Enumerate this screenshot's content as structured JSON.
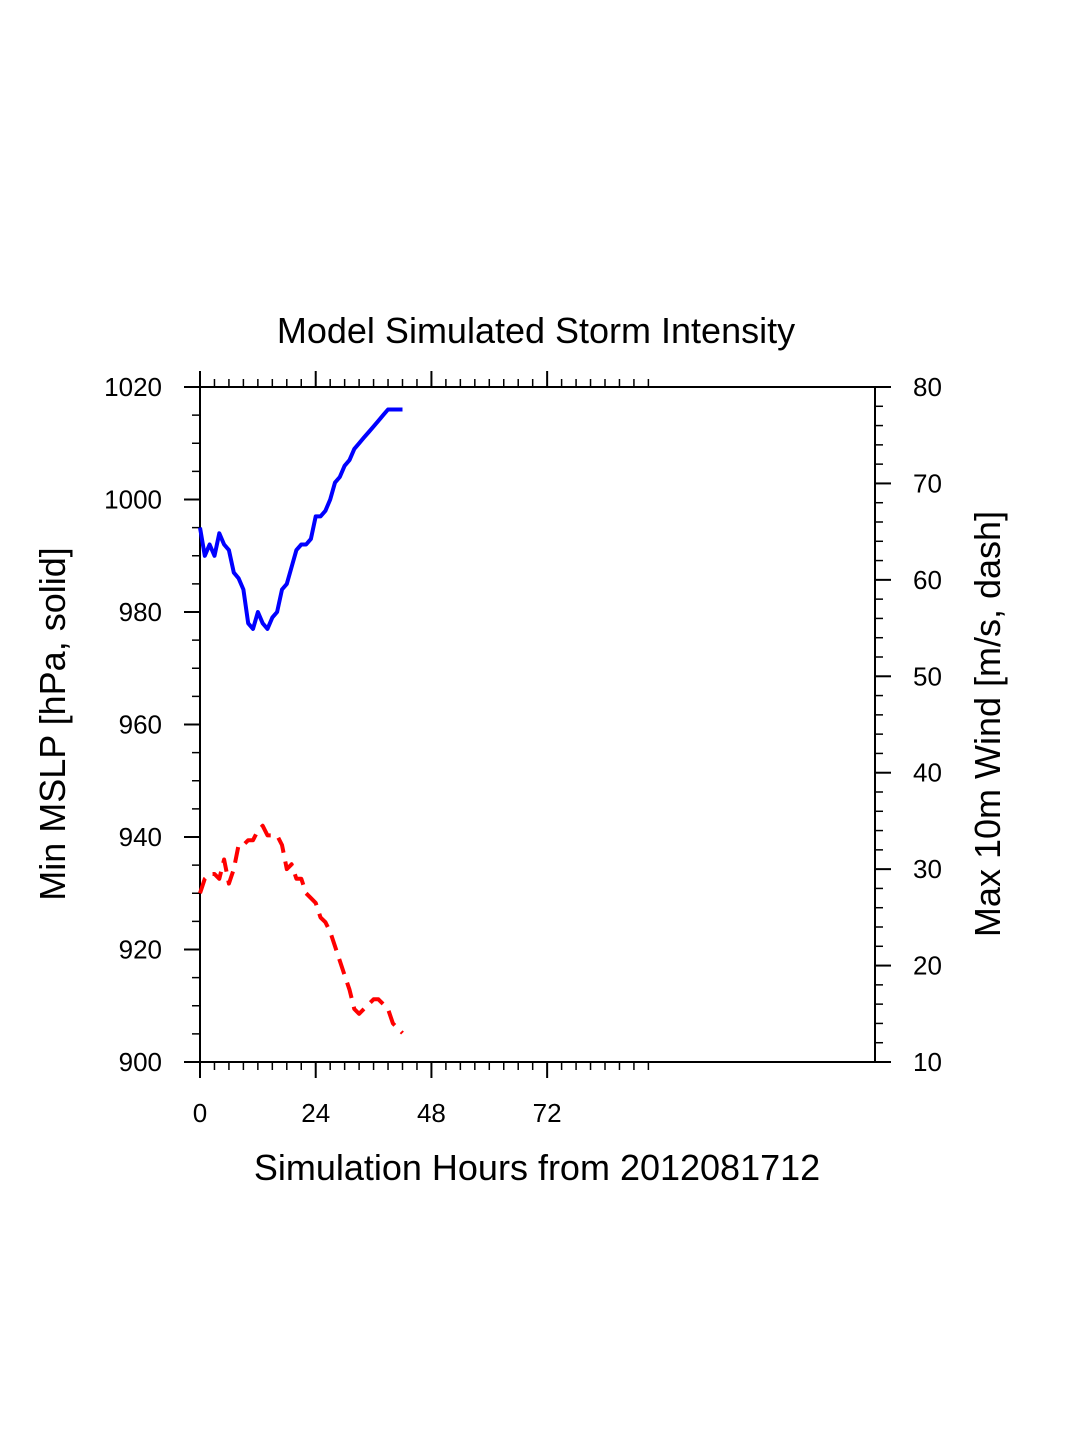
{
  "chart_data": {
    "type": "line",
    "title": "Model Simulated Storm Intensity",
    "xlabel": "Simulation Hours from 2012081712",
    "ylabel_left": "Min MSLP  [hPa, solid]",
    "ylabel_right": "Max 10m Wind  [m/s, dash]",
    "xlim": [
      0,
      140
    ],
    "ylim_left": [
      900,
      1020
    ],
    "ylim_right": [
      10,
      80
    ],
    "x_ticks": [
      "0",
      "24",
      "48",
      "72"
    ],
    "y_left_ticks": [
      "900",
      "920",
      "940",
      "960",
      "980",
      "1000",
      "1020"
    ],
    "y_right_ticks": [
      "10",
      "20",
      "30",
      "40",
      "50",
      "60",
      "70",
      "80"
    ],
    "grid": false,
    "series": [
      {
        "axis": "left",
        "style": "solid",
        "color": "#0000ff",
        "x": [
          0,
          1,
          2,
          3,
          4,
          5,
          6,
          7,
          8,
          9,
          10,
          11,
          12,
          13,
          14,
          15,
          16,
          17,
          18,
          19,
          20,
          21,
          22,
          23,
          24,
          25,
          26,
          27,
          28,
          29,
          30,
          31,
          32,
          33,
          34,
          35,
          36,
          37,
          38,
          39,
          40,
          41,
          42
        ],
        "values": [
          995,
          990,
          992,
          990,
          994,
          992,
          991,
          987,
          986,
          984,
          978,
          977,
          980,
          978,
          977,
          979,
          980,
          984,
          985,
          988,
          991,
          992,
          992,
          993,
          997,
          997,
          998,
          1000,
          1003,
          1004,
          1006,
          1007,
          1009,
          1010,
          1011,
          1012,
          1013,
          1014,
          1015,
          1016,
          1016,
          1016,
          1016
        ]
      },
      {
        "axis": "right",
        "style": "dashed",
        "color": "#ff0000",
        "x": [
          0,
          1,
          2,
          3,
          4,
          5,
          6,
          7,
          8,
          9,
          10,
          11,
          12,
          13,
          14,
          15,
          16,
          17,
          18,
          19,
          20,
          21,
          22,
          23,
          24,
          25,
          26,
          27,
          28,
          29,
          30,
          31,
          32,
          33,
          34,
          35,
          36,
          37,
          38,
          39,
          40,
          41,
          42
        ],
        "values": [
          27.5,
          29,
          29.5,
          29.5,
          29,
          31,
          28.5,
          30,
          32.5,
          32.5,
          33,
          33,
          34,
          34.5,
          33.5,
          33.5,
          33.5,
          32.5,
          30,
          30.5,
          29,
          29,
          27.5,
          27,
          26.5,
          25,
          24.5,
          23.5,
          22,
          20.5,
          19,
          17.5,
          15.5,
          15,
          15.5,
          16,
          16.5,
          16.5,
          16,
          15.5,
          14,
          13.5,
          13
        ]
      }
    ]
  }
}
